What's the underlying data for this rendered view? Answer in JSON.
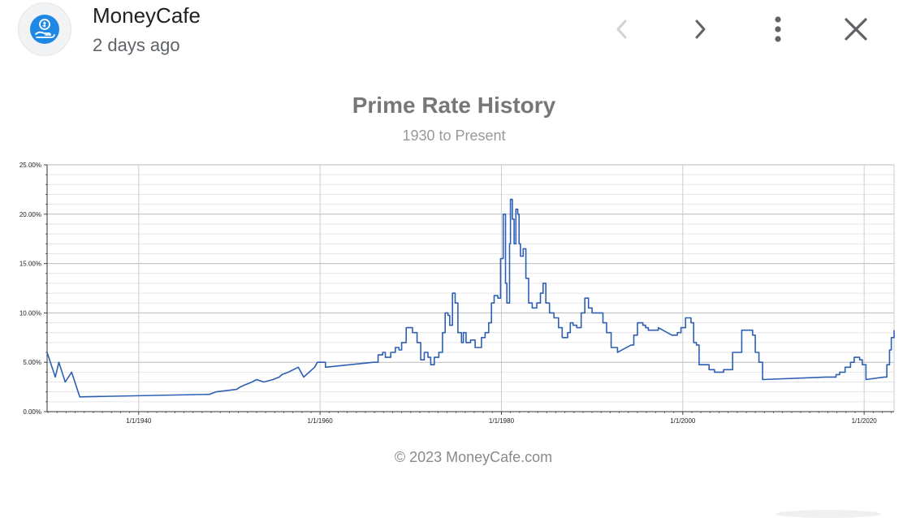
{
  "header": {
    "source_name": "MoneyCafe",
    "timestamp": "2 days ago",
    "avatar_icon": "hand-dollar-icon",
    "prev_icon": "chevron-left-icon",
    "next_icon": "chevron-right-icon",
    "more_icon": "more-vert-icon",
    "close_icon": "close-icon"
  },
  "footer": {
    "copyright": "© 2023 MoneyCafe.com"
  },
  "colors": {
    "line": "#2d5fb3",
    "grid_major": "#bbbbbb",
    "grid_minor": "#e6e6e6",
    "title": "#777777",
    "avatar_bg": "#1e88e5"
  },
  "chart_data": {
    "type": "line",
    "title": "Prime Rate History",
    "subtitle": "1930 to Present",
    "xlabel": "",
    "ylabel": "",
    "grid": true,
    "xlim": [
      1929.9,
      2023.3
    ],
    "ylim": [
      0,
      25
    ],
    "y_ticks": [
      "0.00%",
      "5.00%",
      "10.00%",
      "15.00%",
      "20.00%",
      "25.00%"
    ],
    "x_ticks": [
      "1/1/1940",
      "1/1/1960",
      "1/1/1980",
      "1/1/2000",
      "1/1/2020"
    ],
    "series": [
      {
        "values": [
          [
            1929.9,
            6.0
          ],
          [
            1930.8,
            3.5
          ],
          [
            1931.2,
            5.0
          ],
          [
            1931.9,
            3.0
          ],
          [
            1932.6,
            4.0
          ],
          [
            1933.5,
            1.5
          ],
          [
            1947.8,
            1.75
          ],
          [
            1948.5,
            2.0
          ],
          [
            1950.8,
            2.25
          ],
          [
            1951.2,
            2.5
          ],
          [
            1951.8,
            2.75
          ],
          [
            1952.5,
            3.0
          ],
          [
            1953.0,
            3.25
          ],
          [
            1953.8,
            3.0
          ],
          [
            1954.8,
            3.25
          ],
          [
            1955.5,
            3.5
          ],
          [
            1955.8,
            3.75
          ],
          [
            1956.5,
            4.0
          ],
          [
            1957.6,
            4.5
          ],
          [
            1958.2,
            3.5
          ],
          [
            1958.8,
            4.0
          ],
          [
            1959.4,
            4.5
          ],
          [
            1959.7,
            5.0
          ],
          [
            1960.6,
            4.5
          ],
          [
            1965.9,
            5.0
          ],
          [
            1966.4,
            5.75
          ],
          [
            1966.9,
            6.0
          ],
          [
            1967.2,
            5.5
          ],
          [
            1967.8,
            6.0
          ],
          [
            1968.3,
            6.5
          ],
          [
            1968.7,
            6.25
          ],
          [
            1969.0,
            7.0
          ],
          [
            1969.5,
            8.5
          ],
          [
            1970.2,
            8.0
          ],
          [
            1970.7,
            7.0
          ],
          [
            1971.1,
            5.25
          ],
          [
            1971.5,
            6.0
          ],
          [
            1971.9,
            5.5
          ],
          [
            1972.2,
            4.75
          ],
          [
            1972.6,
            5.5
          ],
          [
            1973.1,
            6.0
          ],
          [
            1973.5,
            8.0
          ],
          [
            1973.8,
            10.0
          ],
          [
            1974.1,
            9.75
          ],
          [
            1974.3,
            8.75
          ],
          [
            1974.6,
            12.0
          ],
          [
            1974.9,
            11.0
          ],
          [
            1975.2,
            8.0
          ],
          [
            1975.6,
            7.0
          ],
          [
            1975.8,
            8.0
          ],
          [
            1976.1,
            7.0
          ],
          [
            1976.6,
            7.25
          ],
          [
            1977.1,
            6.5
          ],
          [
            1977.5,
            6.5
          ],
          [
            1977.8,
            7.5
          ],
          [
            1978.2,
            8.0
          ],
          [
            1978.6,
            9.0
          ],
          [
            1978.9,
            11.0
          ],
          [
            1979.2,
            11.75
          ],
          [
            1979.6,
            11.5
          ],
          [
            1979.9,
            15.5
          ],
          [
            1980.2,
            20.0
          ],
          [
            1980.45,
            13.0
          ],
          [
            1980.6,
            11.0
          ],
          [
            1980.9,
            17.0
          ],
          [
            1981.0,
            21.5
          ],
          [
            1981.2,
            19.5
          ],
          [
            1981.4,
            17.0
          ],
          [
            1981.6,
            20.5
          ],
          [
            1981.8,
            20.0
          ],
          [
            1981.95,
            17.0
          ],
          [
            1982.1,
            15.75
          ],
          [
            1982.4,
            16.5
          ],
          [
            1982.7,
            13.5
          ],
          [
            1983.0,
            11.0
          ],
          [
            1983.4,
            10.5
          ],
          [
            1983.9,
            11.0
          ],
          [
            1984.3,
            12.0
          ],
          [
            1984.6,
            13.0
          ],
          [
            1984.9,
            11.0
          ],
          [
            1985.3,
            10.0
          ],
          [
            1985.8,
            9.5
          ],
          [
            1986.3,
            8.5
          ],
          [
            1986.7,
            7.5
          ],
          [
            1987.3,
            8.0
          ],
          [
            1987.6,
            9.0
          ],
          [
            1987.9,
            8.75
          ],
          [
            1988.3,
            8.5
          ],
          [
            1988.8,
            10.0
          ],
          [
            1989.2,
            11.5
          ],
          [
            1989.6,
            10.5
          ],
          [
            1990.0,
            10.0
          ],
          [
            1990.8,
            10.0
          ],
          [
            1991.2,
            9.0
          ],
          [
            1991.6,
            8.0
          ],
          [
            1992.1,
            6.5
          ],
          [
            1992.8,
            6.0
          ],
          [
            1994.3,
            6.75
          ],
          [
            1994.6,
            7.75
          ],
          [
            1995.0,
            9.0
          ],
          [
            1995.6,
            8.75
          ],
          [
            1995.9,
            8.5
          ],
          [
            1996.2,
            8.25
          ],
          [
            1997.3,
            8.5
          ],
          [
            1998.8,
            7.75
          ],
          [
            1999.4,
            8.0
          ],
          [
            1999.8,
            8.5
          ],
          [
            2000.3,
            9.5
          ],
          [
            2000.9,
            9.0
          ],
          [
            2001.2,
            7.0
          ],
          [
            2001.5,
            6.75
          ],
          [
            2001.8,
            4.75
          ],
          [
            2002.9,
            4.25
          ],
          [
            2003.5,
            4.0
          ],
          [
            2004.5,
            4.25
          ],
          [
            2005.5,
            6.0
          ],
          [
            2006.5,
            8.25
          ],
          [
            2007.7,
            7.75
          ],
          [
            2008.0,
            6.0
          ],
          [
            2008.4,
            5.0
          ],
          [
            2008.8,
            3.25
          ],
          [
            2015.9,
            3.5
          ],
          [
            2016.9,
            3.75
          ],
          [
            2017.3,
            4.0
          ],
          [
            2017.9,
            4.5
          ],
          [
            2018.5,
            5.0
          ],
          [
            2018.9,
            5.5
          ],
          [
            2019.5,
            5.25
          ],
          [
            2019.8,
            4.75
          ],
          [
            2020.2,
            3.25
          ],
          [
            2022.2,
            3.5
          ],
          [
            2022.5,
            4.75
          ],
          [
            2022.8,
            6.25
          ],
          [
            2023.0,
            7.5
          ],
          [
            2023.3,
            8.25
          ]
        ]
      }
    ]
  }
}
